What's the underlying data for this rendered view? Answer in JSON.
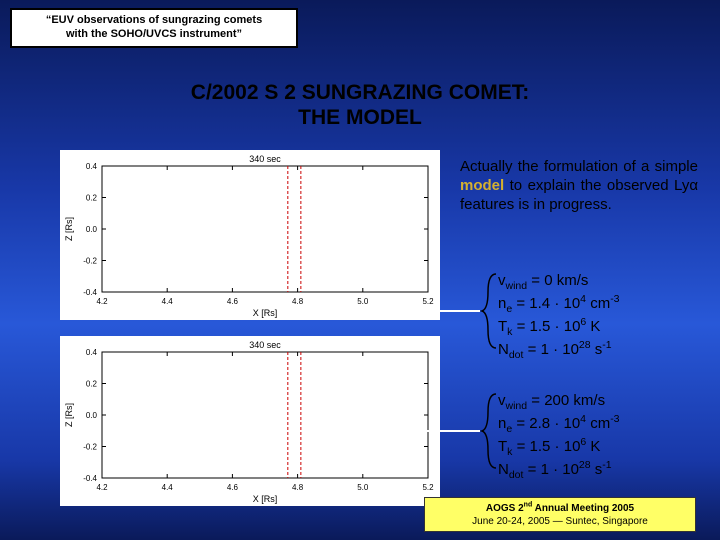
{
  "titleBox": {
    "line1": "“EUV observations of sungrazing comets",
    "line2": "with the SOHO/UVCS instrument”"
  },
  "mainTitle": {
    "line1": "C/2002 S 2 SUNGRAZING COMET:",
    "line2": "THE MODEL"
  },
  "description": {
    "text_pre": "Actually the formulation of a simple ",
    "model_word": "model",
    "text_post": " to explain the observed Lyα features is in progress."
  },
  "params1": {
    "vwind": "0 km/s",
    "ne_coef": "1.4",
    "ne_exp": "4",
    "ne_unit": "cm",
    "ne_unit_exp": "-3",
    "Tk_coef": "1.5",
    "Tk_exp": "6",
    "Tk_unit": "K",
    "Ndot_coef": "1",
    "Ndot_exp": "28",
    "Ndot_unit": "s",
    "Ndot_unit_exp": "-1"
  },
  "params2": {
    "vwind": "200 km/s",
    "ne_coef": "2.8",
    "ne_exp": "4",
    "ne_unit": "cm",
    "ne_unit_exp": "-3",
    "Tk_coef": "1.5",
    "Tk_exp": "6",
    "Tk_unit": "K",
    "Ndot_coef": "1",
    "Ndot_exp": "28",
    "Ndot_unit": "s",
    "Ndot_unit_exp": "-1"
  },
  "footer": {
    "line1_pre": "AOGS 2",
    "line1_sup": "nd",
    "line1_post": " Annual Meeting 2005",
    "line2": "June 20-24, 2005 — Suntec, Singapore"
  },
  "chart": {
    "title": "340 sec",
    "xlabel": "X [Rs]",
    "ylabel": "Z [Rs]",
    "xlim": [
      4.2,
      5.2
    ],
    "ylim": [
      -0.4,
      0.4
    ],
    "xticks": [
      4.2,
      4.4,
      4.6,
      4.8,
      5.0,
      5.2
    ],
    "yticks": [
      -0.4,
      -0.2,
      0.0,
      0.2,
      0.4
    ],
    "slit_x": [
      4.77,
      4.81
    ],
    "slit_color": "#cc0000",
    "axis_color": "#000000",
    "bg": "#ffffff",
    "font_size_ticks": 8,
    "font_size_label": 9,
    "font_size_title": 9
  }
}
